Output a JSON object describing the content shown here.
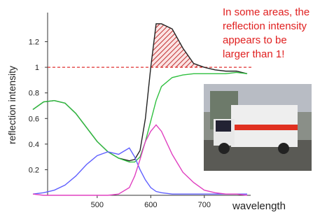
{
  "chart_data": {
    "type": "line",
    "y_label": "reflection intensity",
    "x_label": "wavelength",
    "annotation": [
      "In some areas, the",
      "reflection intensity",
      "appears to be",
      "larger than 1!"
    ],
    "reference_line": {
      "value": 1,
      "color": "#e03030"
    },
    "x": [
      380,
      400,
      420,
      440,
      460,
      480,
      500,
      520,
      540,
      560,
      570,
      580,
      590,
      600,
      610,
      620,
      640,
      660,
      680,
      700,
      720,
      740,
      760,
      780
    ],
    "xlim": [
      380,
      780
    ],
    "xticks": [
      500,
      600,
      700
    ],
    "ylim": [
      0,
      1.4
    ],
    "yticks": [
      0.2,
      0.4,
      0.6,
      0.8,
      1,
      1.2
    ],
    "series": [
      {
        "color": "#222222",
        "values": [
          0.67,
          0.73,
          0.74,
          0.72,
          0.64,
          0.53,
          0.42,
          0.34,
          0.29,
          0.27,
          0.28,
          0.35,
          0.6,
          1.0,
          1.34,
          1.34,
          1.3,
          1.15,
          1.03,
          1.0,
          0.98,
          0.97,
          0.97,
          0.95
        ]
      },
      {
        "color": "#30c040",
        "values": [
          0.67,
          0.73,
          0.74,
          0.72,
          0.64,
          0.53,
          0.42,
          0.34,
          0.29,
          0.26,
          0.26,
          0.3,
          0.42,
          0.58,
          0.74,
          0.85,
          0.92,
          0.94,
          0.95,
          0.95,
          0.95,
          0.95,
          0.96,
          0.95
        ]
      },
      {
        "color": "#6060ff",
        "values": [
          0.01,
          0.02,
          0.04,
          0.08,
          0.15,
          0.24,
          0.31,
          0.34,
          0.32,
          0.37,
          0.3,
          0.2,
          0.12,
          0.06,
          0.03,
          0.02,
          0.01,
          0.01,
          0.01,
          0.01,
          0.01,
          0.01,
          0.01,
          0.01
        ]
      },
      {
        "color": "#e040c0",
        "values": [
          0.01,
          0,
          0,
          0,
          0,
          0,
          0,
          0,
          0.01,
          0.06,
          0.15,
          0.28,
          0.42,
          0.5,
          0.55,
          0.5,
          0.32,
          0.18,
          0.1,
          0.04,
          0.02,
          0.01,
          0.01,
          0
        ]
      }
    ]
  }
}
